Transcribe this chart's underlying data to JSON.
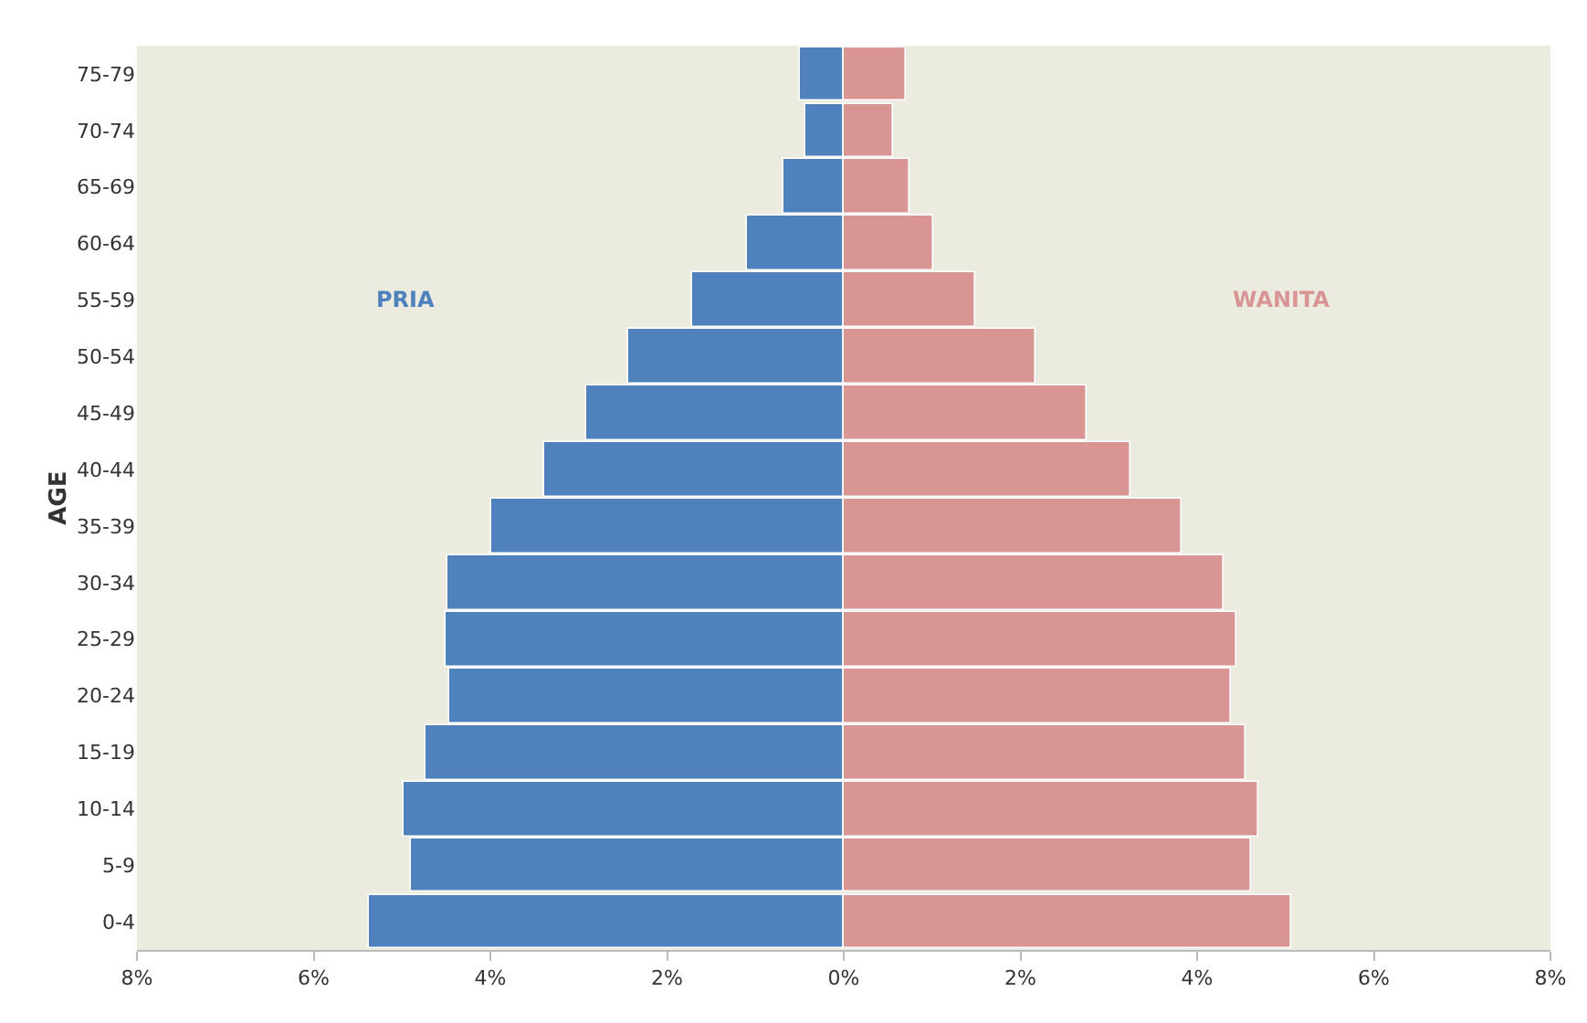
{
  "chart_data": {
    "type": "bar",
    "orientation": "horizontal",
    "stacked": true,
    "ylabel": "AGE",
    "categories": [
      "75-79",
      "70-74",
      "65-69",
      "60-64",
      "55-59",
      "50-54",
      "45-49",
      "40-44",
      "35-39",
      "30-34",
      "25-29",
      "20-24",
      "15-19",
      "10-14",
      "5-9",
      "0-4"
    ],
    "series": [
      {
        "name": "PRIA",
        "color": "#4f81bd",
        "values": [
          -0.5,
          -0.44,
          -0.68,
          -1.1,
          -1.71,
          -2.44,
          -2.92,
          -3.38,
          -3.98,
          -4.48,
          -4.5,
          -4.46,
          -4.73,
          -4.99,
          -4.9,
          -5.37
        ]
      },
      {
        "name": "WANITA",
        "color": "#d99594",
        "values": [
          0.71,
          0.55,
          0.75,
          1.02,
          1.48,
          2.17,
          2.75,
          3.25,
          3.83,
          4.29,
          4.45,
          4.38,
          4.54,
          4.7,
          4.62,
          5.06
        ]
      }
    ],
    "xlim": [
      -8,
      8
    ],
    "xticks": [
      {
        "value": -8,
        "label": "8%"
      },
      {
        "value": -6,
        "label": "6%"
      },
      {
        "value": -4,
        "label": "4%"
      },
      {
        "value": -2,
        "label": "2%"
      },
      {
        "value": 0,
        "label": "0%"
      },
      {
        "value": 2,
        "label": "2%"
      },
      {
        "value": 4,
        "label": "4%"
      },
      {
        "value": 6,
        "label": "6%"
      },
      {
        "value": 8,
        "label": "8%"
      }
    ],
    "grid": false,
    "legend": false
  }
}
